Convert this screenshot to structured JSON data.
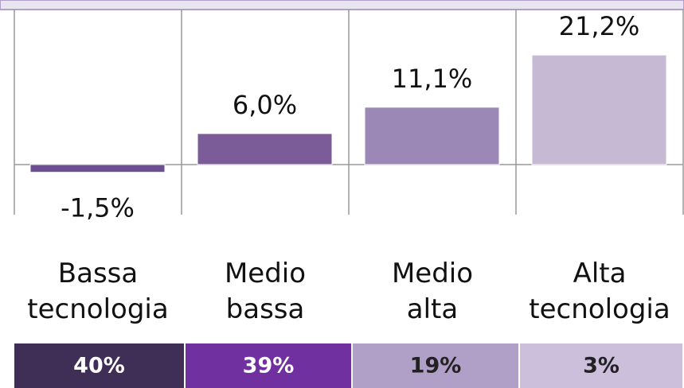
{
  "chart_data": {
    "type": "bar",
    "categories": [
      "Bassa tecnologia",
      "Medio bassa",
      "Medio alta",
      "Alta tecnologia"
    ],
    "values": [
      -1.5,
      6.0,
      11.1,
      21.2
    ],
    "value_labels": [
      "-1,5%",
      "6,0%",
      "11,1%",
      "21,2%"
    ],
    "colors": [
      "#6b4f91",
      "#7b5c99",
      "#9c88b7",
      "#c5b9d3"
    ],
    "ylim": [
      -9.7,
      30
    ],
    "share_labels": [
      "40%",
      "39%",
      "19%",
      "3%"
    ],
    "share_colors": [
      "#3f2e56",
      "#7030a0",
      "#b0a0c8",
      "#cbbfdc"
    ],
    "share_text_colors": [
      "#ffffff",
      "#ffffff",
      "#222222",
      "#222222"
    ]
  }
}
